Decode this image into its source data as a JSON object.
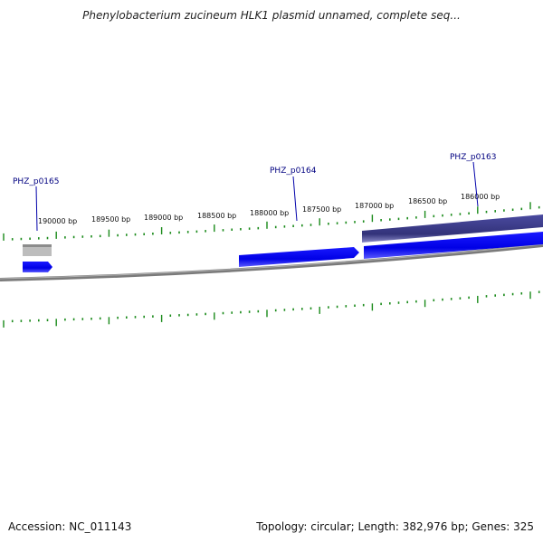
{
  "title": "Phenylobacterium zucineum HLK1 plasmid unnamed, complete seq...",
  "footer": {
    "accession": "Accession: NC_011143",
    "summary": "Topology: circular; Length: 382,976 bp; Genes: 325"
  },
  "tick_labels": [
    "190000 bp",
    "189500 bp",
    "189000 bp",
    "188500 bp",
    "188000 bp",
    "187500 bp",
    "187000 bp",
    "186500 bp",
    "186000 bp"
  ],
  "genes": [
    {
      "label": "PHZ_p0165"
    },
    {
      "label": "PHZ_p0164"
    },
    {
      "label": "PHZ_p0163"
    }
  ],
  "colors": {
    "forward_gene": "#0000ee",
    "reverse_gene": "#3a3a8c",
    "backbone": "#808080",
    "ticks": "#1a8a1a",
    "label": "#000080",
    "grey_feature": "#b8b8b8"
  }
}
